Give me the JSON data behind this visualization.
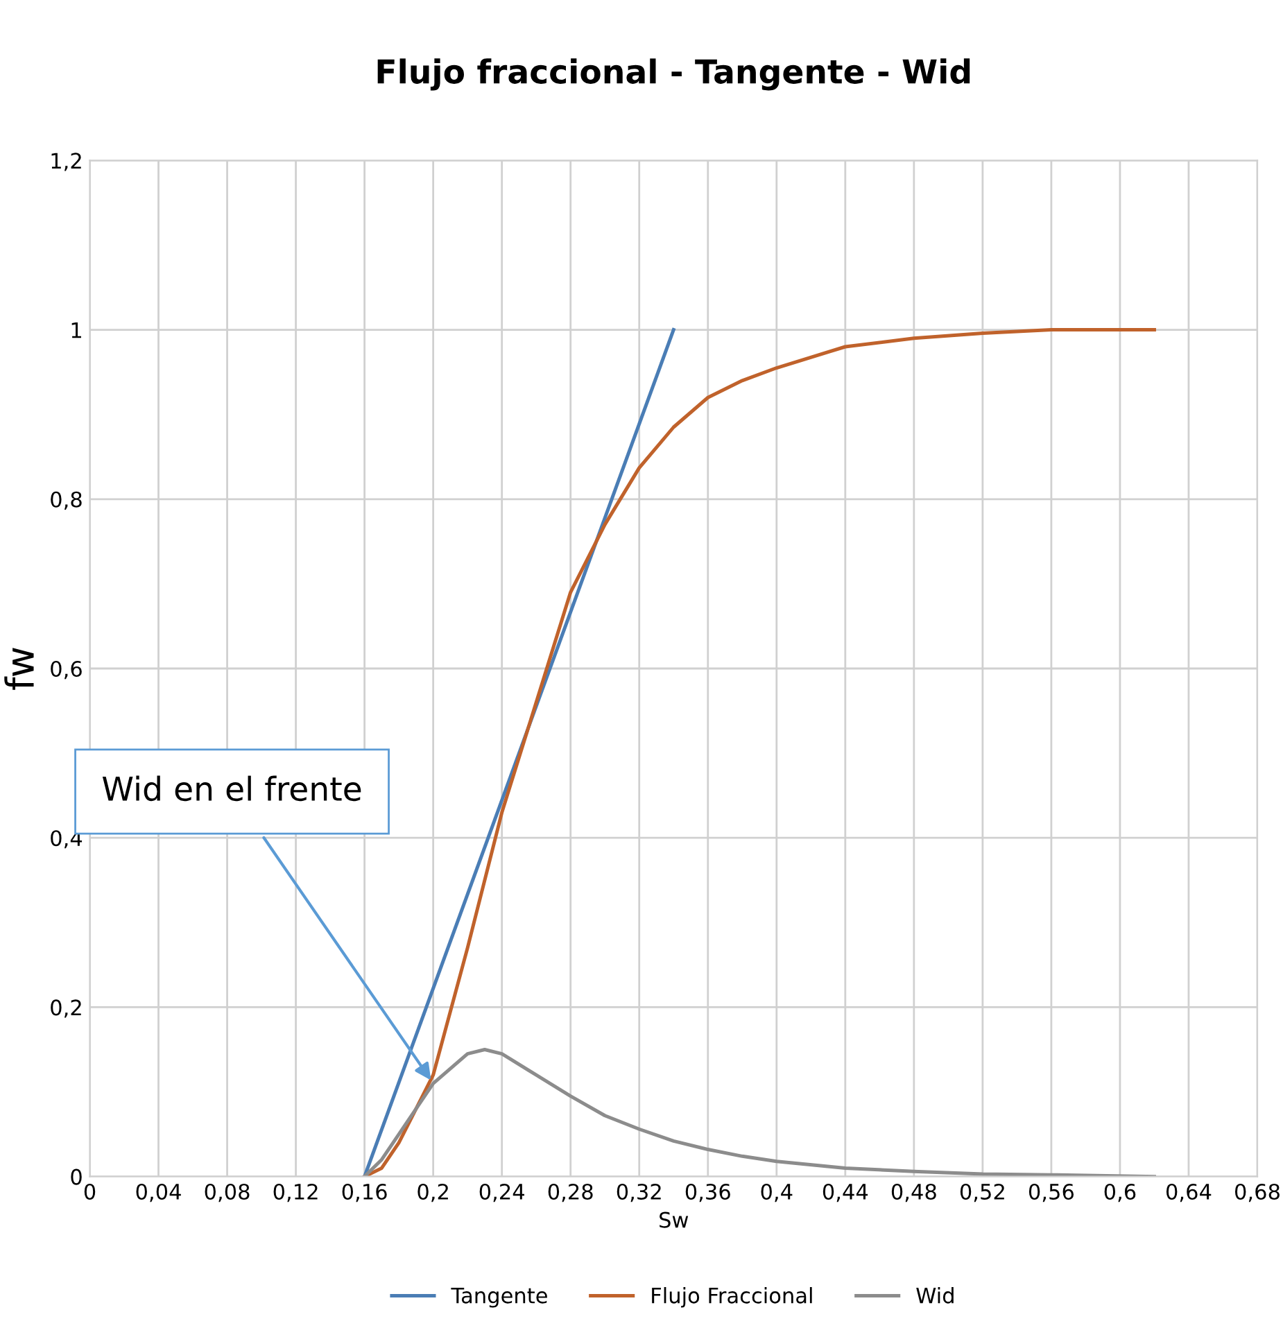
{
  "chart_data": {
    "type": "line",
    "title": "Flujo fraccional - Tangente - Wid",
    "xlabel": "Sw",
    "ylabel": "fw",
    "xlim": [
      0,
      0.68
    ],
    "ylim": [
      0,
      1.2
    ],
    "xticks": [
      0,
      {
        "value": 0.04,
        "label": "0,04"
      },
      {
        "value": 0.08,
        "label": "0,08"
      },
      {
        "value": 0.12,
        "label": "0,12"
      },
      {
        "value": 0.16,
        "label": "0,16"
      },
      {
        "value": 0.2,
        "label": "0,2"
      },
      {
        "value": 0.24,
        "label": "0,24"
      },
      {
        "value": 0.28,
        "label": "0,28"
      },
      {
        "value": 0.32,
        "label": "0,32"
      },
      {
        "value": 0.36,
        "label": "0,36"
      },
      {
        "value": 0.4,
        "label": "0,4"
      },
      {
        "value": 0.44,
        "label": "0,44"
      },
      {
        "value": 0.48,
        "label": "0,48"
      },
      {
        "value": 0.52,
        "label": "0,52"
      },
      {
        "value": 0.56,
        "label": "0,56"
      },
      {
        "value": 0.6,
        "label": "0,6"
      },
      {
        "value": 0.64,
        "label": "0,64"
      },
      {
        "value": 0.68,
        "label": "0,68"
      }
    ],
    "yticks": [
      0,
      {
        "value": 0.2,
        "label": "0,2"
      },
      {
        "value": 0.4,
        "label": "0,4"
      },
      {
        "value": 0.6,
        "label": "0,6"
      },
      {
        "value": 0.8,
        "label": "0,8"
      },
      1,
      {
        "value": 1.2,
        "label": "1,2"
      }
    ],
    "grid": true,
    "legend": "bottom",
    "marker": "none",
    "line_style": "solid",
    "annotations": [
      {
        "text": "Wid en el frente",
        "x": 0.2,
        "y": 0.11
      }
    ],
    "series": [
      {
        "name": "Tangente",
        "color": "#4a7db5",
        "x": [
          0.16,
          0.34
        ],
        "values": [
          0,
          1
        ]
      },
      {
        "name": "Flujo Fraccional",
        "color": "#c0622b",
        "x": [
          0.16,
          0.17,
          0.18,
          0.2,
          0.22,
          0.24,
          0.26,
          0.28,
          0.3,
          0.32,
          0.34,
          0.36,
          0.38,
          0.4,
          0.44,
          0.48,
          0.52,
          0.56,
          0.6,
          0.62
        ],
        "values": [
          0,
          0.01,
          0.04,
          0.12,
          0.27,
          0.43,
          0.56,
          0.69,
          0.77,
          0.837,
          0.885,
          0.92,
          0.94,
          0.955,
          0.98,
          0.99,
          0.996,
          1,
          1,
          1
        ]
      },
      {
        "name": "Wid",
        "color": "#8c8c8c",
        "x": [
          0.16,
          0.17,
          0.18,
          0.2,
          0.22,
          0.23,
          0.24,
          0.26,
          0.28,
          0.3,
          0.32,
          0.34,
          0.36,
          0.38,
          0.4,
          0.44,
          0.48,
          0.52,
          0.56,
          0.62
        ],
        "values": [
          0,
          0.02,
          0.05,
          0.11,
          0.145,
          0.15,
          0.145,
          0.12,
          0.095,
          0.072,
          0.056,
          0.042,
          0.032,
          0.024,
          0.018,
          0.01,
          0.006,
          0.003,
          0.002,
          0
        ]
      }
    ]
  }
}
